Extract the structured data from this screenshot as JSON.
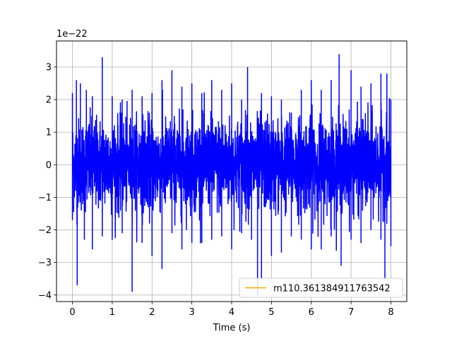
{
  "chart_data": {
    "type": "line",
    "title": "",
    "xlabel": "Time (s)",
    "ylabel": "",
    "y_scale_label": "1e−22",
    "y_scale": 1e-22,
    "xlim": [
      -0.4,
      8.4
    ],
    "ylim": [
      -4.2,
      3.8
    ],
    "xticks": [
      0,
      1,
      2,
      3,
      4,
      5,
      6,
      7,
      8
    ],
    "xtick_labels": [
      "0",
      "1",
      "2",
      "3",
      "4",
      "5",
      "6",
      "7",
      "8"
    ],
    "yticks": [
      -4,
      -3,
      -2,
      -1,
      0,
      1,
      2,
      3
    ],
    "ytick_labels": [
      "−4",
      "−3",
      "−2",
      "−1",
      "0",
      "1",
      "2",
      "3"
    ],
    "grid": true,
    "legend_position": "lower-right",
    "series": [
      {
        "name": "",
        "color": "#0000ff",
        "description": "dense noise strain signal",
        "x_range": [
          0,
          8
        ],
        "envelope_upper": [
          [
            0.0,
            2.2
          ],
          [
            0.1,
            2.6
          ],
          [
            0.2,
            2.5
          ],
          [
            0.35,
            2.3
          ],
          [
            0.5,
            2.1
          ],
          [
            0.75,
            3.3
          ],
          [
            1.0,
            2.1
          ],
          [
            1.25,
            2.0
          ],
          [
            1.5,
            2.3
          ],
          [
            1.75,
            2.1
          ],
          [
            2.0,
            2.2
          ],
          [
            2.25,
            2.6
          ],
          [
            2.5,
            2.9
          ],
          [
            2.75,
            2.4
          ],
          [
            3.0,
            2.5
          ],
          [
            3.25,
            2.2
          ],
          [
            3.5,
            2.6
          ],
          [
            3.75,
            2.3
          ],
          [
            4.0,
            2.5
          ],
          [
            4.25,
            2.0
          ],
          [
            4.4,
            3.0
          ],
          [
            4.75,
            2.2
          ],
          [
            5.0,
            2.1
          ],
          [
            5.25,
            2.0
          ],
          [
            5.5,
            1.6
          ],
          [
            5.75,
            2.3
          ],
          [
            6.0,
            2.6
          ],
          [
            6.25,
            2.3
          ],
          [
            6.5,
            2.6
          ],
          [
            6.7,
            3.4
          ],
          [
            7.0,
            2.9
          ],
          [
            7.25,
            2.4
          ],
          [
            7.5,
            2.5
          ],
          [
            7.75,
            2.8
          ],
          [
            7.9,
            2.8
          ],
          [
            8.0,
            2.0
          ]
        ],
        "envelope_lower": [
          [
            0.0,
            -1.7
          ],
          [
            0.12,
            -3.7
          ],
          [
            0.3,
            -2.3
          ],
          [
            0.5,
            -2.6
          ],
          [
            0.75,
            -2.2
          ],
          [
            1.0,
            -2.3
          ],
          [
            1.25,
            -2.1
          ],
          [
            1.5,
            -3.9
          ],
          [
            1.75,
            -2.4
          ],
          [
            2.0,
            -2.8
          ],
          [
            2.25,
            -3.2
          ],
          [
            2.5,
            -2.1
          ],
          [
            2.75,
            -2.6
          ],
          [
            3.0,
            -2.4
          ],
          [
            3.25,
            -2.4
          ],
          [
            3.5,
            -2.3
          ],
          [
            3.75,
            -2.2
          ],
          [
            4.0,
            -2.6
          ],
          [
            4.25,
            -2.1
          ],
          [
            4.5,
            -2.3
          ],
          [
            4.65,
            -4.0
          ],
          [
            4.75,
            -3.5
          ],
          [
            5.0,
            -2.8
          ],
          [
            5.25,
            -2.7
          ],
          [
            5.5,
            -2.2
          ],
          [
            5.75,
            -2.3
          ],
          [
            6.0,
            -2.6
          ],
          [
            6.25,
            -2.6
          ],
          [
            6.5,
            -2.2
          ],
          [
            6.75,
            -3.1
          ],
          [
            7.0,
            -2.3
          ],
          [
            7.25,
            -2.4
          ],
          [
            7.5,
            -2.0
          ],
          [
            7.75,
            -2.3
          ],
          [
            7.85,
            -3.5
          ],
          [
            8.0,
            -2.5
          ]
        ]
      },
      {
        "name": "m110.361384911763542",
        "color": "#ffa500",
        "description": "legend-only series (no visible data)"
      }
    ]
  }
}
